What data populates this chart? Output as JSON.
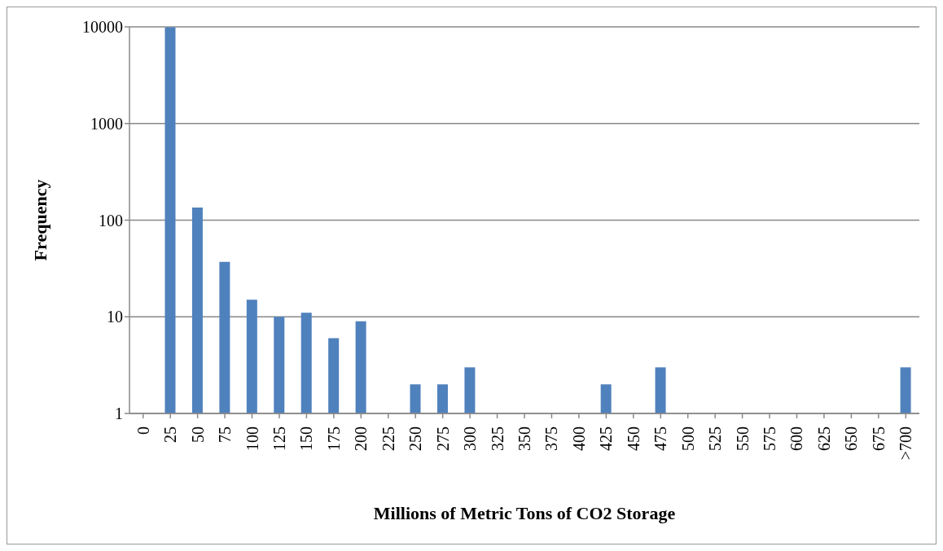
{
  "chart_data": {
    "type": "bar",
    "xlabel": "Millions of Metric Tons of CO2 Storage",
    "ylabel": "Frequency",
    "categories": [
      "0",
      "25",
      "50",
      "75",
      "100",
      "125",
      "150",
      "175",
      "200",
      "225",
      "250",
      "275",
      "300",
      "325",
      "350",
      "375",
      "400",
      "425",
      "450",
      "475",
      "500",
      "525",
      "550",
      "575",
      "600",
      "625",
      "650",
      "675",
      ">700"
    ],
    "values": [
      null,
      9900,
      135,
      37,
      15,
      10,
      11,
      6,
      9,
      null,
      2,
      2,
      3,
      null,
      null,
      null,
      null,
      2,
      null,
      3,
      null,
      null,
      null,
      null,
      null,
      null,
      null,
      null,
      3
    ],
    "color": "#4f81bd",
    "log": "y",
    "ylim": [
      1,
      10000
    ],
    "yticks": [
      1,
      10,
      100,
      1000,
      10000
    ],
    "grid": "y"
  }
}
